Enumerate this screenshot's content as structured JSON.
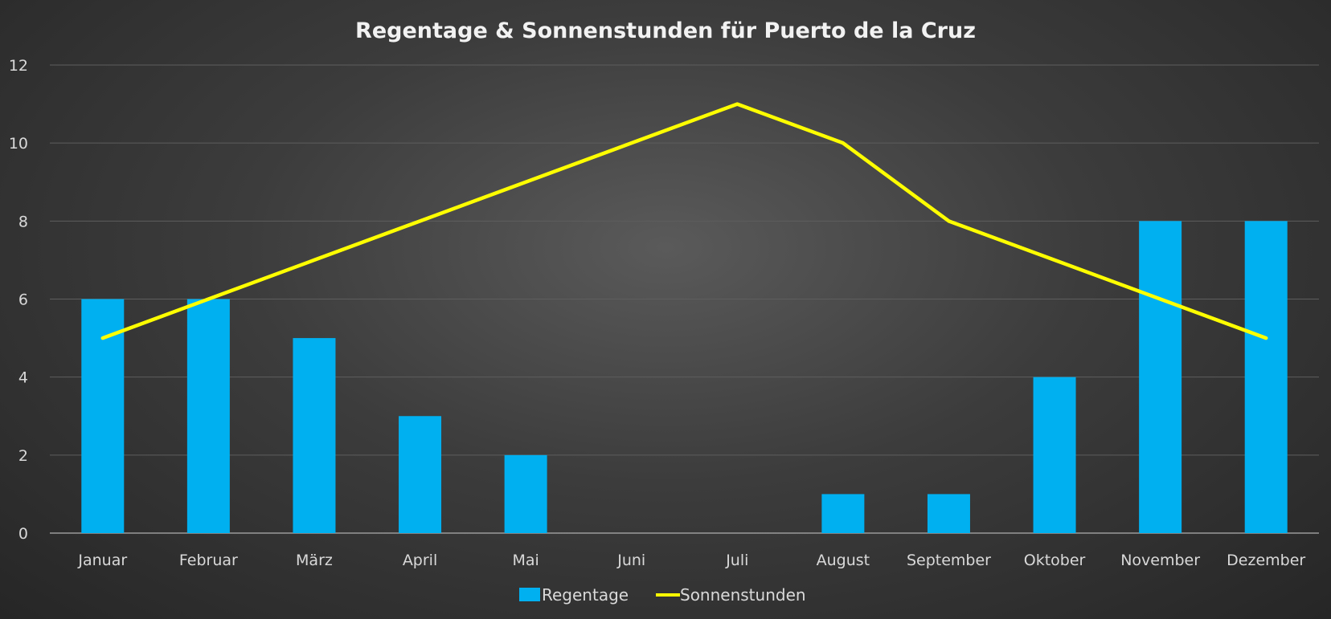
{
  "chart_data": {
    "type": "bar+line",
    "title": "Regentage & Sonnenstunden für Puerto de la Cruz",
    "categories": [
      "Januar",
      "Februar",
      "März",
      "April",
      "Mai",
      "Juni",
      "Juli",
      "August",
      "September",
      "Oktober",
      "November",
      "Dezember"
    ],
    "series": [
      {
        "name": "Regentage",
        "type": "bar",
        "color": "#00b0f0",
        "values": [
          6,
          6,
          5,
          3,
          2,
          0,
          0,
          1,
          1,
          4,
          8,
          8
        ]
      },
      {
        "name": "Sonnenstunden",
        "type": "line",
        "color": "#ffff00",
        "values": [
          5,
          6,
          7,
          8,
          9,
          10,
          11,
          10,
          8,
          7,
          6,
          5
        ]
      }
    ],
    "ylim": [
      0,
      12
    ],
    "yticks": [
      0,
      2,
      4,
      6,
      8,
      10,
      12
    ],
    "grid": true,
    "legend": "bottom"
  }
}
